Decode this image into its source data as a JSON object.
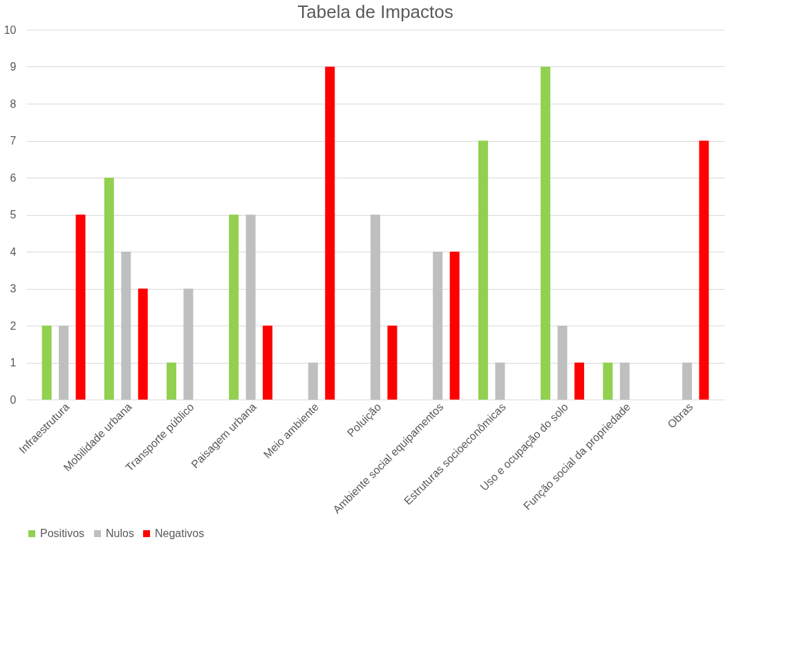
{
  "chart_data": {
    "type": "bar",
    "title": "Tabela de Impactos",
    "categories": [
      "Infraestrutura",
      "Mobilidade urbana",
      "Transporte público",
      "Paisagem urbana",
      "Meio ambiente",
      "Poluição",
      "Ambiente social equipamentos",
      "Estruturas socioeconômicas",
      "Uso e ocupação do solo",
      "Função social da propriedade",
      "Obras"
    ],
    "series": [
      {
        "name": "Positivos",
        "color": "#92d050",
        "values": [
          2,
          6,
          1,
          5,
          0,
          0,
          0,
          7,
          9,
          1,
          0
        ]
      },
      {
        "name": "Nulos",
        "color": "#bfbfbf",
        "values": [
          2,
          4,
          3,
          5,
          1,
          5,
          4,
          1,
          2,
          1,
          1
        ]
      },
      {
        "name": "Negativos",
        "color": "#ff0000",
        "values": [
          5,
          3,
          0,
          2,
          9,
          2,
          4,
          0,
          1,
          0,
          7
        ]
      }
    ],
    "ylim": [
      0,
      10
    ],
    "yticks": [
      0,
      1,
      2,
      3,
      4,
      5,
      6,
      7,
      8,
      9,
      10
    ],
    "grid": "y",
    "legend": "bottom"
  }
}
